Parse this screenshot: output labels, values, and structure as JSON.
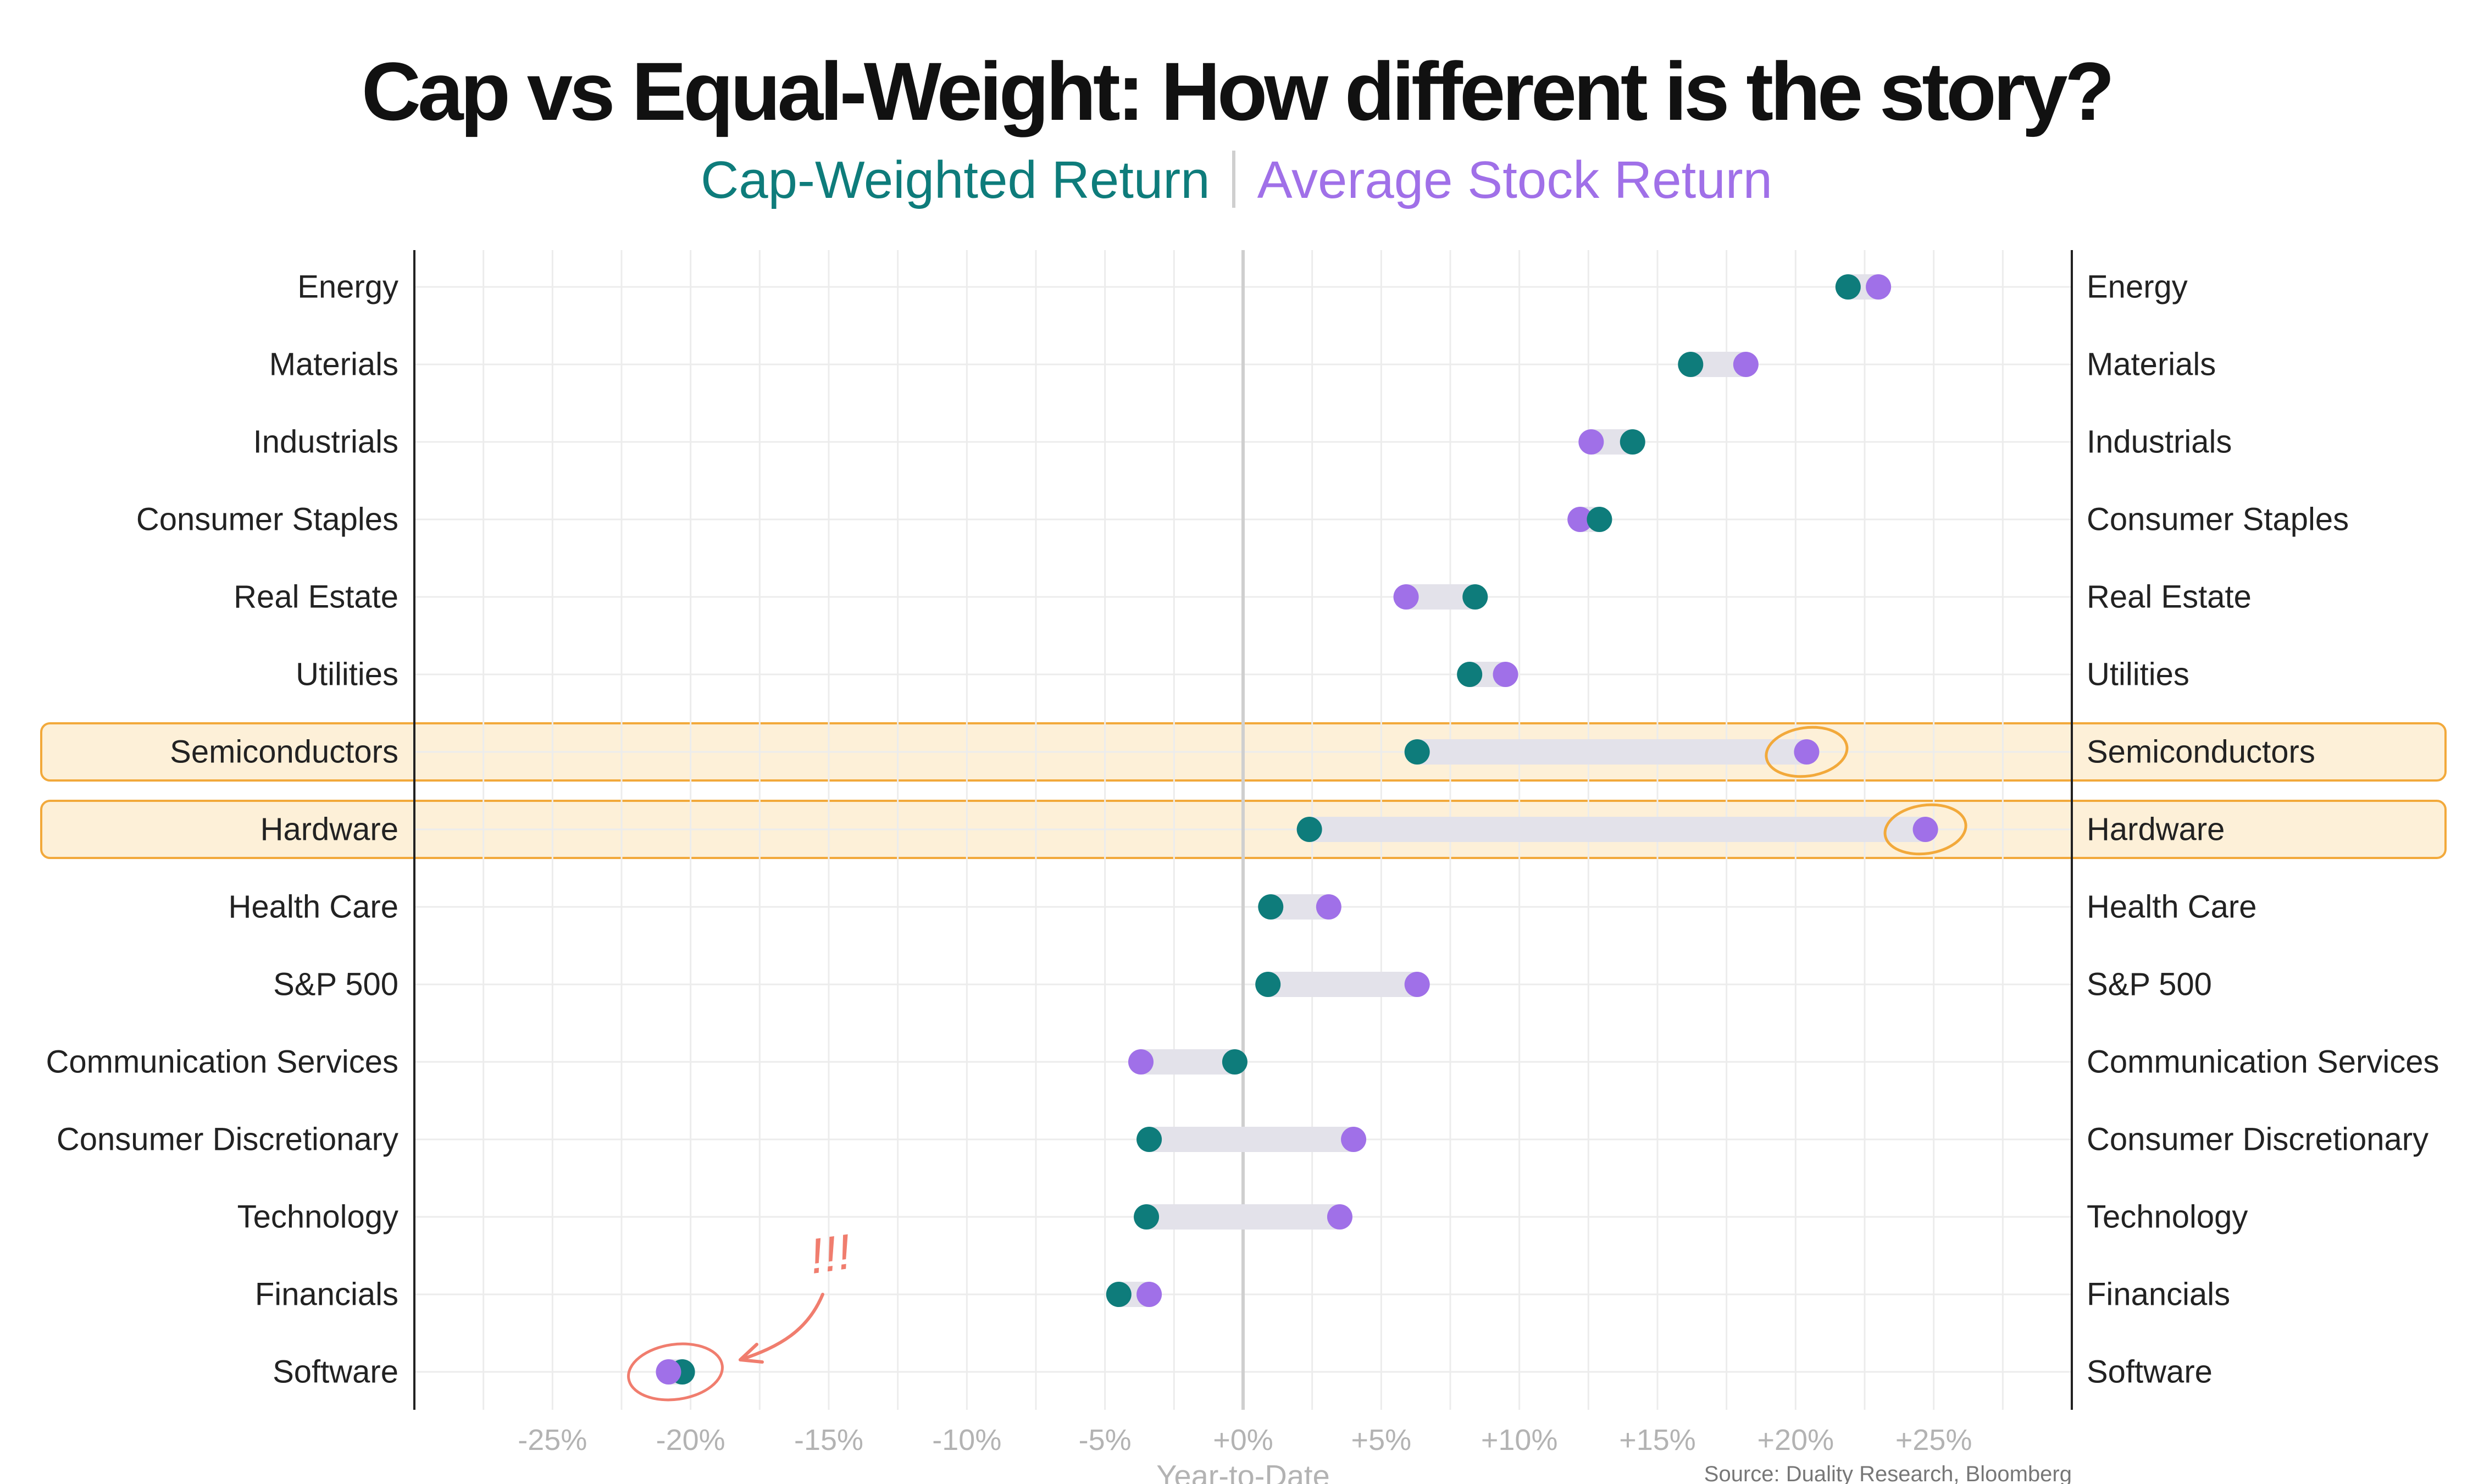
{
  "chart_data": {
    "type": "dumbbell",
    "title": "Cap vs Equal-Weight: How different is the story?",
    "legend": {
      "cap_weighted": "Cap-Weighted Return",
      "average_stock": "Average Stock Return"
    },
    "series": [
      {
        "name": "Cap-Weighted Return",
        "color": "#0e7c7b"
      },
      {
        "name": "Average Stock Return",
        "color": "#a070e8"
      }
    ],
    "categories": [
      "Energy",
      "Materials",
      "Industrials",
      "Consumer Staples",
      "Real Estate",
      "Utilities",
      "Semiconductors",
      "Hardware",
      "Health Care",
      "S&P 500",
      "Communication Services",
      "Consumer Discretionary",
      "Technology",
      "Financials",
      "Software"
    ],
    "cap_weighted": [
      21.9,
      16.2,
      14.1,
      12.9,
      8.4,
      8.2,
      6.3,
      2.4,
      1.0,
      0.9,
      -0.3,
      -3.4,
      -3.5,
      -4.5,
      -20.3
    ],
    "average_stock": [
      23.0,
      18.2,
      12.6,
      12.2,
      5.9,
      9.5,
      20.4,
      24.7,
      3.1,
      6.3,
      -3.7,
      4.0,
      3.5,
      -3.4,
      -20.8
    ],
    "highlighted": [
      "Semiconductors",
      "Hardware"
    ],
    "annotated": [
      "Software"
    ],
    "annotation_text": "!!!",
    "x_ticks": [
      -25,
      -20,
      -15,
      -10,
      -5,
      0,
      5,
      10,
      15,
      20,
      25
    ],
    "x_tick_labels": [
      "-25%",
      "-20%",
      "-15%",
      "-10%",
      "-5%",
      "+0%",
      "+5%",
      "+10%",
      "+15%",
      "+20%",
      "+25%"
    ],
    "xlim": [
      -30,
      30
    ],
    "xlabel": "Year-to-Date",
    "ylabel": "",
    "source": "Source: Duality Research, Bloomberg",
    "grid": true,
    "colors": {
      "cap": "#0e7c7b",
      "avg": "#a070e8",
      "connector": "#e3e2ea",
      "highlight_fill": "#fdf0d8",
      "highlight_stroke": "#f2a93b",
      "annotation": "#f07d6e",
      "grid": "#ececec",
      "zero_line": "#cfcfcf"
    }
  }
}
